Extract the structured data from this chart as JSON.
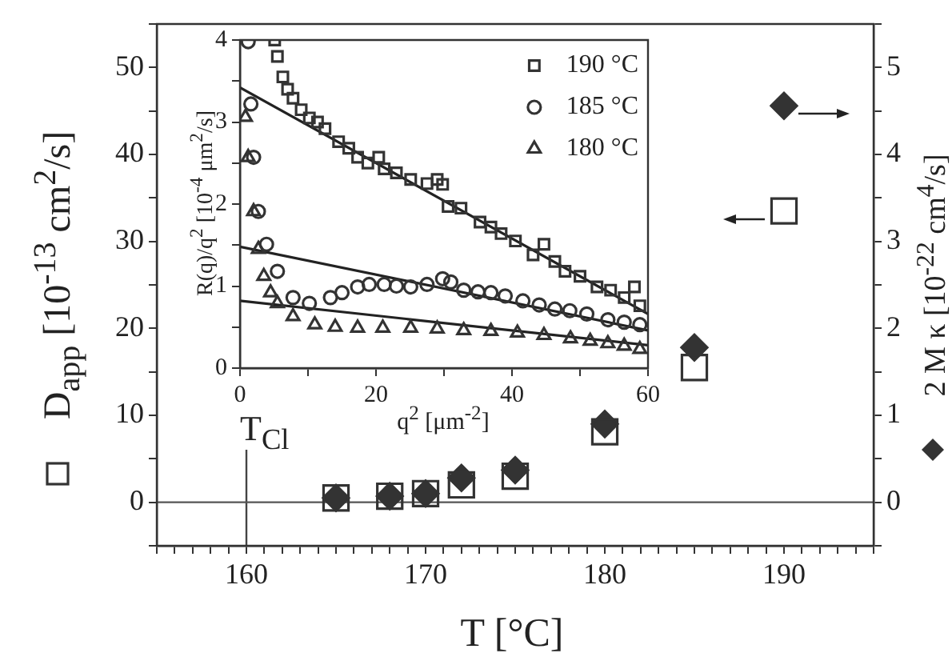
{
  "chart_data": [
    {
      "type": "scatter",
      "xlabel": "T [°C]",
      "ylabel": "D$_{app}$ [10$^{-13}$ cm$^{2}$/s]",
      "y2label": "2 M κ [10$^{-22}$ cm$^{4}$/s]",
      "x": [
        165,
        168,
        170,
        172,
        175,
        180,
        185,
        190
      ],
      "series": [
        {
          "marker": "square",
          "color": "#333333",
          "values": [
            0.5,
            0.7,
            1,
            2,
            3,
            8.1,
            15.5,
            33.5
          ]
        },
        {
          "marker": "diamond",
          "axis": "y2",
          "color": "#333333",
          "values": [
            0.05,
            0.07,
            0.1,
            0.28,
            0.37,
            0.9,
            1.78,
            4.56
          ]
        }
      ],
      "xlim": [
        155,
        195
      ],
      "xticks": [
        {
          "value": 155,
          "label": null
        },
        {
          "value": 156,
          "label": null
        },
        {
          "value": 157,
          "label": null
        },
        {
          "value": 158,
          "label": null
        },
        {
          "value": 159,
          "label": null
        },
        160,
        {
          "value": 161,
          "label": null
        },
        {
          "value": 162,
          "label": null
        },
        {
          "value": 163,
          "label": null
        },
        {
          "value": 164,
          "label": null
        },
        {
          "value": 165,
          "label": null
        },
        {
          "value": 166,
          "label": null
        },
        {
          "value": 167,
          "label": null
        },
        {
          "value": 168,
          "label": null
        },
        {
          "value": 169,
          "label": null
        },
        170,
        {
          "value": 171,
          "label": null
        },
        {
          "value": 172,
          "label": null
        },
        {
          "value": 173,
          "label": null
        },
        {
          "value": 174,
          "label": null
        },
        {
          "value": 175,
          "label": null
        },
        {
          "value": 176,
          "label": null
        },
        {
          "value": 177,
          "label": null
        },
        {
          "value": 178,
          "label": null
        },
        {
          "value": 179,
          "label": null
        },
        180,
        {
          "value": 181,
          "label": null
        },
        {
          "value": 182,
          "label": null
        },
        {
          "value": 183,
          "label": null
        },
        {
          "value": 184,
          "label": null
        },
        {
          "value": 185,
          "label": null
        },
        {
          "value": 186,
          "label": null
        },
        {
          "value": 187,
          "label": null
        },
        {
          "value": 188,
          "label": null
        },
        {
          "value": 189,
          "label": null
        },
        190,
        {
          "value": 191,
          "label": null
        },
        {
          "value": 192,
          "label": null
        },
        {
          "value": 193,
          "label": null
        },
        {
          "value": 194,
          "label": null
        },
        {
          "value": 195,
          "label": null
        }
      ],
      "ylim": [
        -5,
        55
      ],
      "yticks": [
        {
          "value": -5,
          "label": null
        },
        0,
        {
          "value": 5,
          "label": null
        },
        10,
        {
          "value": 15,
          "label": null
        },
        20,
        {
          "value": 25,
          "label": null
        },
        30,
        {
          "value": 35,
          "label": null
        },
        40,
        {
          "value": 45,
          "label": null
        },
        50,
        {
          "value": 55,
          "label": null
        }
      ],
      "y2lim": [
        -0.5,
        5.5
      ],
      "y2ticks": [
        {
          "value": -0.5,
          "label": null
        },
        0,
        {
          "value": 0.5,
          "label": null
        },
        1,
        {
          "value": 1.5,
          "label": null
        },
        2,
        {
          "value": 2.5,
          "label": null
        },
        3,
        {
          "value": 3.5,
          "label": null
        },
        4,
        {
          "value": 4.5,
          "label": null
        },
        5,
        {
          "value": 5.5,
          "label": null
        }
      ],
      "ref_lines": [
        {
          "axis": "x",
          "value": 160,
          "label": "T$_{Cl}$",
          "color": "#444444"
        },
        {
          "axis": "y",
          "value": 0,
          "color": "#555555"
        }
      ],
      "grid": false,
      "legend": false
    },
    {
      "type": "scatter",
      "xlabel": "q$^{2}$ [μm$^{-2}$]",
      "ylabel": "R(q)/q$^{2}$ [10$^{-4}$ μm$^{2}$/s]",
      "series": [
        {
          "name": "190 °C",
          "marker": "square",
          "color": "#333333",
          "x": [
            5.1,
            5.5,
            6.3,
            7.0,
            7.8,
            9.0,
            10.2,
            11.4,
            12.5,
            14.5,
            16.0,
            17.3,
            18.8,
            20.4,
            21.2,
            23.0,
            25.1,
            27.5,
            29.0,
            29.8,
            30.6,
            32.5,
            35.3,
            36.9,
            38.4,
            40.5,
            43.1,
            44.7,
            46.3,
            47.8,
            50.0,
            52.5,
            54.5,
            56.5,
            58.0,
            58.8
          ],
          "values": [
            4.0,
            3.8,
            3.55,
            3.4,
            3.29,
            3.15,
            3.05,
            3.0,
            2.92,
            2.76,
            2.68,
            2.57,
            2.5,
            2.57,
            2.43,
            2.38,
            2.3,
            2.25,
            2.3,
            2.24,
            1.97,
            1.95,
            1.78,
            1.72,
            1.64,
            1.55,
            1.38,
            1.51,
            1.3,
            1.18,
            1.12,
            0.99,
            0.95,
            0.86,
            0.99,
            0.76
          ]
        },
        {
          "name": "185 °C",
          "marker": "circle",
          "color": "#333333",
          "x": [
            1.2,
            1.6,
            2.0,
            2.7,
            3.9,
            5.5,
            7.8,
            10.2,
            13.3,
            15.0,
            17.3,
            19.0,
            21.2,
            23.0,
            25.1,
            27.5,
            29.8,
            31.0,
            32.9,
            35.0,
            36.9,
            39.0,
            41.6,
            44.0,
            46.3,
            48.5,
            51.0,
            54.1,
            56.5,
            58.8
          ],
          "values": [
            3.98,
            3.22,
            2.57,
            1.91,
            1.51,
            1.18,
            0.86,
            0.79,
            0.86,
            0.92,
            0.99,
            1.02,
            1.02,
            1.0,
            0.99,
            1.02,
            1.09,
            1.05,
            0.95,
            0.93,
            0.92,
            0.88,
            0.82,
            0.77,
            0.72,
            0.7,
            0.66,
            0.59,
            0.56,
            0.53
          ]
        },
        {
          "name": "180 °C",
          "marker": "triangle",
          "color": "#333333",
          "x": [
            0.8,
            1.2,
            2.0,
            2.7,
            3.5,
            4.5,
            5.5,
            7.8,
            11.0,
            14.0,
            17.3,
            21.0,
            25.1,
            29.0,
            32.9,
            36.9,
            40.8,
            44.7,
            48.6,
            51.5,
            54.1,
            56.5,
            58.8
          ],
          "values": [
            3.06,
            2.57,
            1.91,
            1.45,
            1.12,
            0.92,
            0.79,
            0.63,
            0.53,
            0.5,
            0.49,
            0.49,
            0.49,
            0.48,
            0.46,
            0.45,
            0.43,
            0.4,
            0.36,
            0.33,
            0.3,
            0.27,
            0.23
          ]
        },
        {
          "type": "line",
          "color": "#222222",
          "x": [
            0,
            60
          ],
          "values": [
            3.42,
            0.66
          ]
        },
        {
          "type": "line",
          "color": "#222222",
          "x": [
            0,
            60
          ],
          "values": [
            1.48,
            0.46
          ]
        },
        {
          "type": "line",
          "color": "#222222",
          "x": [
            0,
            60
          ],
          "values": [
            0.82,
            0.28
          ]
        }
      ],
      "xlim": [
        0,
        60
      ],
      "xticks": [
        0,
        {
          "value": 10,
          "label": null
        },
        20,
        {
          "value": 30,
          "label": null
        },
        40,
        {
          "value": 50,
          "label": null
        },
        60
      ],
      "ylim": [
        0,
        4
      ],
      "yticks": [
        0,
        {
          "value": 0.5,
          "label": null
        },
        1,
        {
          "value": 1.5,
          "label": null
        },
        2,
        {
          "value": 2.5,
          "label": null
        },
        3,
        {
          "value": 3.5,
          "label": null
        },
        4
      ],
      "grid": false,
      "legend": "top right",
      "line_style": "solid"
    }
  ]
}
